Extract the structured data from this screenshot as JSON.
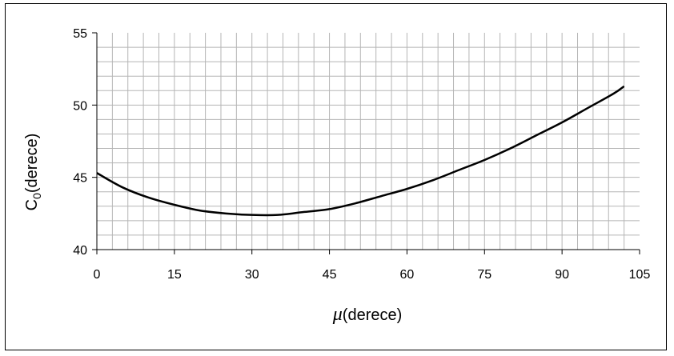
{
  "chart_data": {
    "type": "line",
    "title": "",
    "xlabel_symbol": "μ",
    "xlabel_unit": "(derece)",
    "ylabel_main": "C",
    "ylabel_sub": "0",
    "ylabel_unit": "(derece)",
    "xlim": [
      0,
      105
    ],
    "ylim": [
      40,
      55
    ],
    "x_ticks": [
      0,
      15,
      30,
      45,
      60,
      75,
      90,
      105
    ],
    "y_ticks": [
      40,
      45,
      50,
      55
    ],
    "grid": true,
    "minor_x_step": 3,
    "minor_y_step": 1,
    "legend": "none",
    "series": [
      {
        "color": "#000000",
        "x": [
          0,
          5,
          10,
          15,
          20,
          25,
          30,
          35,
          40,
          45,
          50,
          55,
          60,
          65,
          70,
          75,
          80,
          85,
          90,
          95,
          100,
          102
        ],
        "y": [
          45.3,
          44.3,
          43.6,
          43.1,
          42.7,
          42.5,
          42.4,
          42.4,
          42.6,
          42.8,
          43.2,
          43.7,
          44.2,
          44.8,
          45.5,
          46.2,
          47.0,
          47.9,
          48.8,
          49.8,
          50.8,
          51.3
        ]
      }
    ]
  }
}
